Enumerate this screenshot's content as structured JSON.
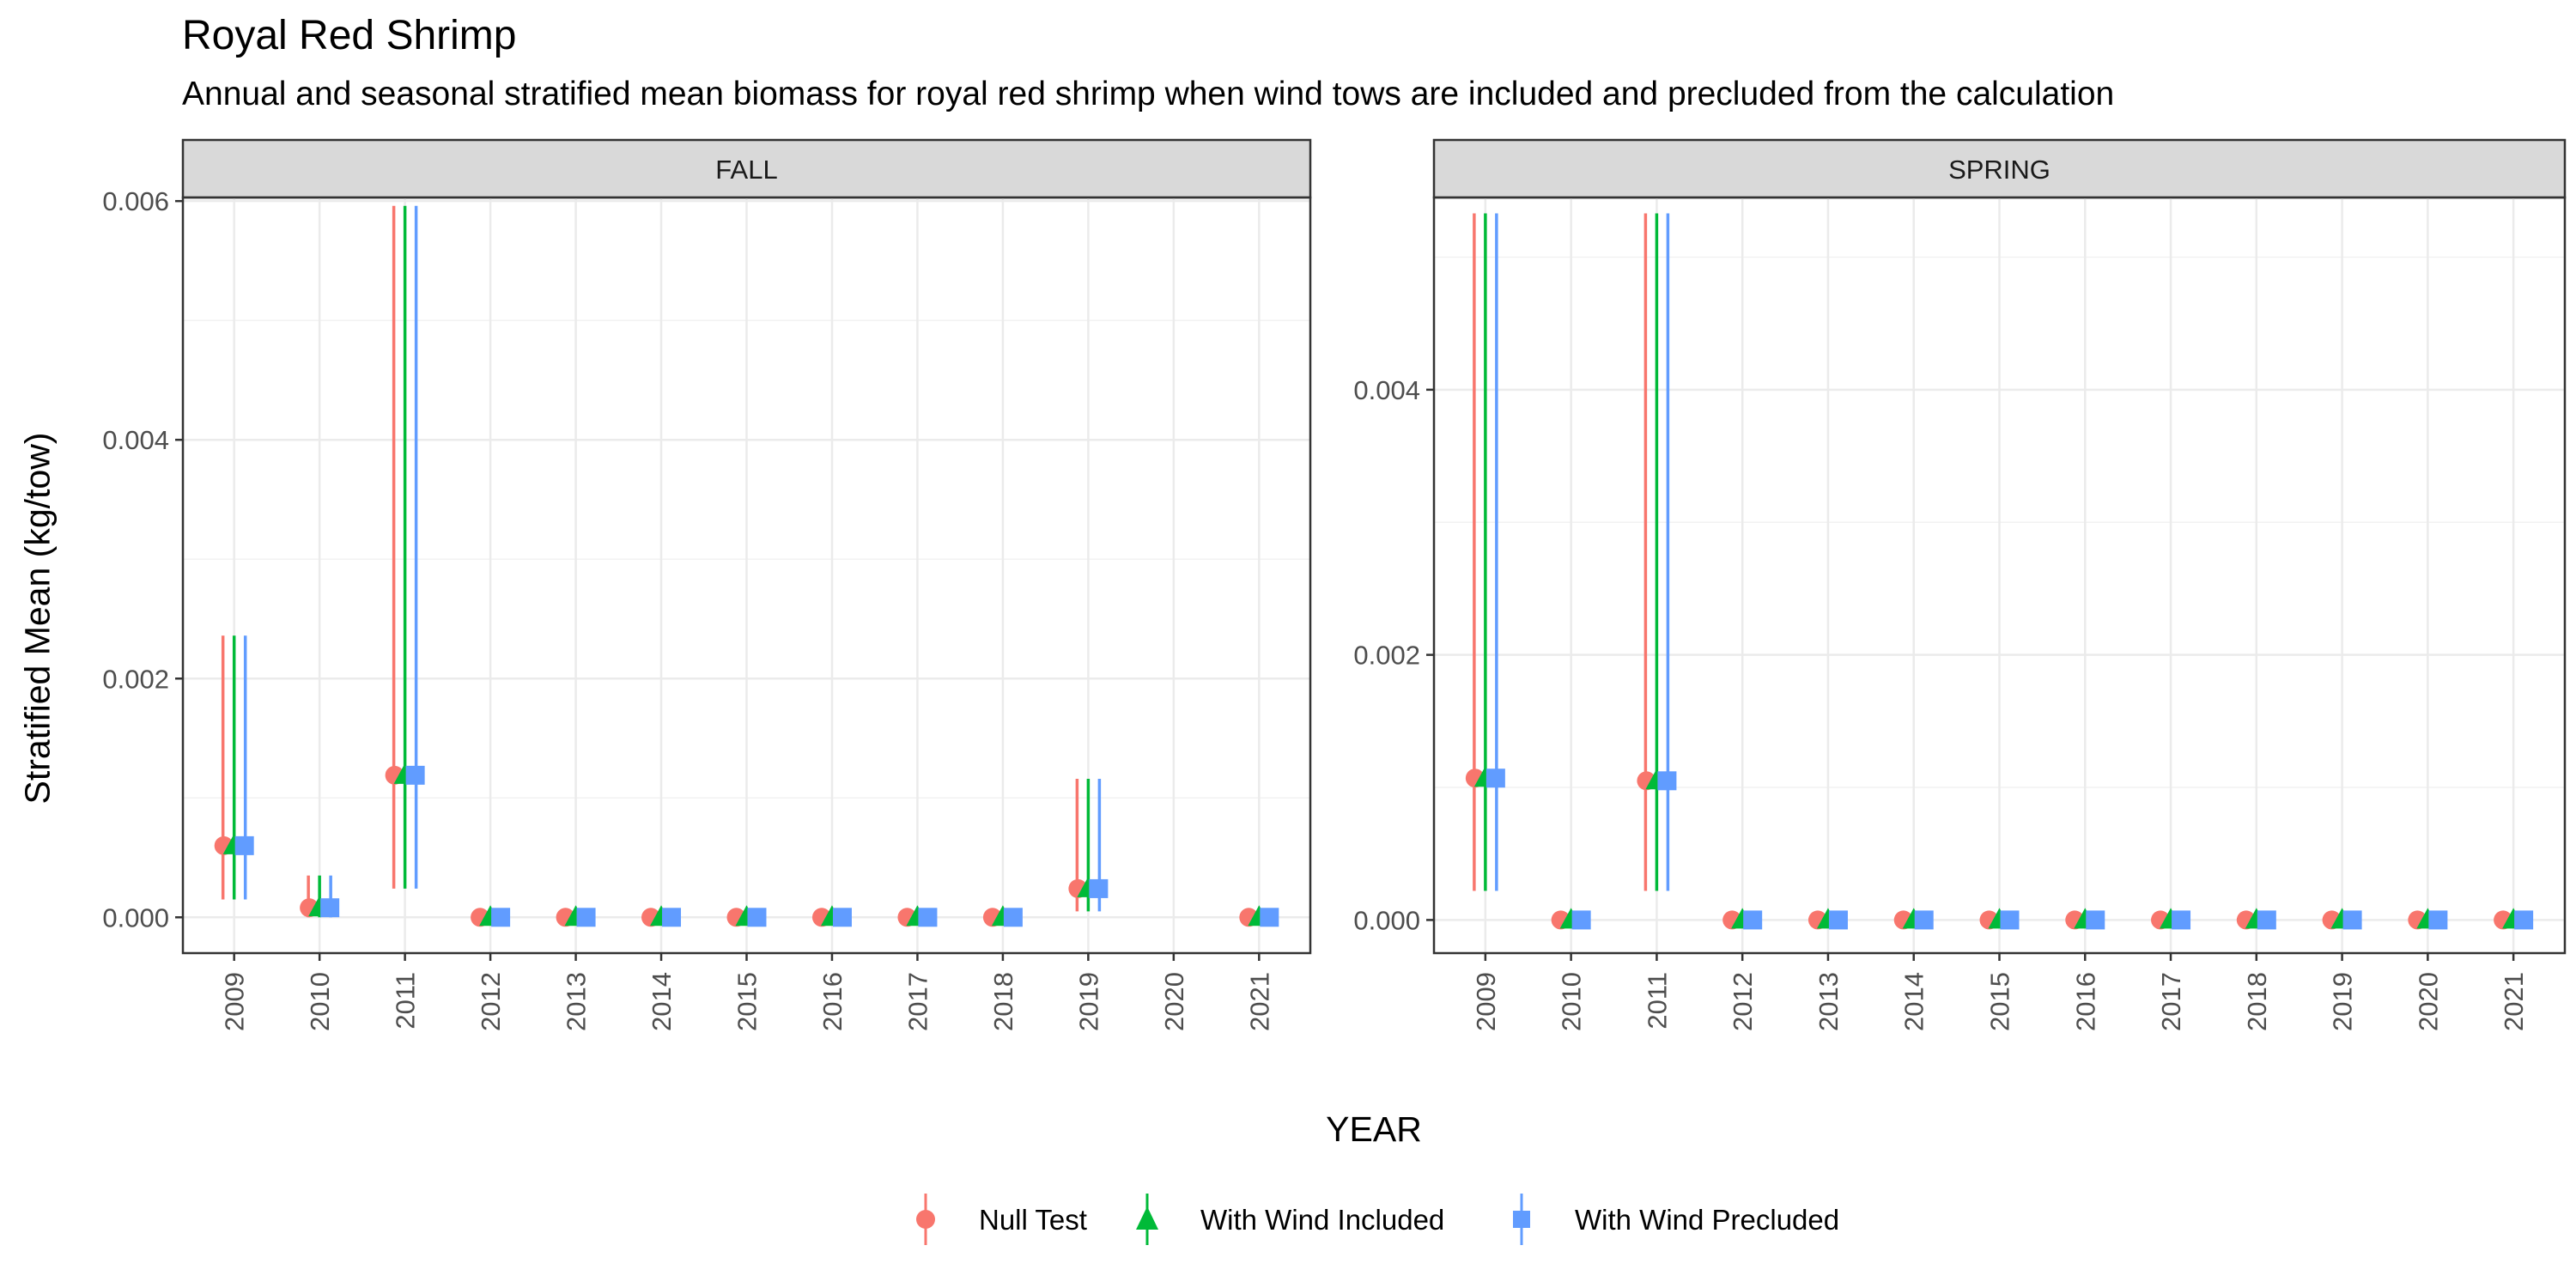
{
  "colors": {
    "series": [
      "#F8766D",
      "#00BA38",
      "#619CFF"
    ],
    "strip_bg": "#D9D9D9",
    "grid": "#EBEBEB"
  },
  "chart_data": {
    "type": "scatter",
    "title": "Royal Red Shrimp",
    "subtitle": "Annual and seasonal stratified mean biomass for royal red shrimp when wind tows are included and precluded from the calculation",
    "xlabel": "YEAR",
    "ylabel": "Stratified Mean (kg/tow)",
    "legend_position": "bottom",
    "legend": [
      {
        "name": "Null Test",
        "shape": "circle"
      },
      {
        "name": "With Wind Included",
        "shape": "triangle"
      },
      {
        "name": "With Wind Precluded",
        "shape": "square"
      }
    ],
    "series_names": [
      "Null Test",
      "With Wind Included",
      "With Wind Precluded"
    ],
    "panels": [
      {
        "strip": "FALL",
        "x": [
          "2009",
          "2010",
          "2011",
          "2012",
          "2013",
          "2014",
          "2015",
          "2016",
          "2017",
          "2018",
          "2019",
          "2020",
          "2021"
        ],
        "ylim": [
          -0.0003,
          0.00603
        ],
        "yticks": [
          0.0,
          0.002,
          0.004,
          0.006
        ],
        "ytick_labels": [
          "0.000",
          "0.002",
          "0.004",
          "0.006"
        ],
        "points": [
          {
            "x": "2009",
            "y": 0.0006,
            "lo": 0.00015,
            "hi": 0.00236
          },
          {
            "x": "2010",
            "y": 8e-05,
            "lo": 0.0,
            "hi": 0.00035
          },
          {
            "x": "2011",
            "y": 0.00119,
            "lo": 0.00024,
            "hi": 0.00596
          },
          {
            "x": "2012",
            "y": 0.0,
            "lo": null,
            "hi": null
          },
          {
            "x": "2013",
            "y": 0.0,
            "lo": null,
            "hi": null
          },
          {
            "x": "2014",
            "y": 0.0,
            "lo": null,
            "hi": null
          },
          {
            "x": "2015",
            "y": 0.0,
            "lo": null,
            "hi": null
          },
          {
            "x": "2016",
            "y": 0.0,
            "lo": null,
            "hi": null
          },
          {
            "x": "2017",
            "y": 0.0,
            "lo": null,
            "hi": null
          },
          {
            "x": "2018",
            "y": 0.0,
            "lo": null,
            "hi": null
          },
          {
            "x": "2019",
            "y": 0.00024,
            "lo": 5e-05,
            "hi": 0.00116
          },
          {
            "x": "2021",
            "y": 0.0,
            "lo": null,
            "hi": null
          }
        ]
      },
      {
        "strip": "SPRING",
        "x": [
          "2009",
          "2010",
          "2011",
          "2012",
          "2013",
          "2014",
          "2015",
          "2016",
          "2017",
          "2018",
          "2019",
          "2020",
          "2021"
        ],
        "ylim": [
          -0.00025,
          0.00545
        ],
        "yticks": [
          0.0,
          0.002,
          0.004
        ],
        "ytick_labels": [
          "0.000",
          "0.002",
          "0.004"
        ],
        "points": [
          {
            "x": "2009",
            "y": 0.00107,
            "lo": 0.00022,
            "hi": 0.00533
          },
          {
            "x": "2010",
            "y": 0.0,
            "lo": null,
            "hi": null
          },
          {
            "x": "2011",
            "y": 0.00105,
            "lo": 0.00022,
            "hi": 0.00533
          },
          {
            "x": "2012",
            "y": 0.0,
            "lo": null,
            "hi": null
          },
          {
            "x": "2013",
            "y": 0.0,
            "lo": null,
            "hi": null
          },
          {
            "x": "2014",
            "y": 0.0,
            "lo": null,
            "hi": null
          },
          {
            "x": "2015",
            "y": 0.0,
            "lo": null,
            "hi": null
          },
          {
            "x": "2016",
            "y": 0.0,
            "lo": null,
            "hi": null
          },
          {
            "x": "2017",
            "y": 0.0,
            "lo": null,
            "hi": null
          },
          {
            "x": "2018",
            "y": 0.0,
            "lo": null,
            "hi": null
          },
          {
            "x": "2019",
            "y": 0.0,
            "lo": null,
            "hi": null
          },
          {
            "x": "2020",
            "y": 0.0,
            "lo": null,
            "hi": null
          },
          {
            "x": "2021",
            "y": 0.0,
            "lo": null,
            "hi": null
          }
        ]
      }
    ]
  }
}
